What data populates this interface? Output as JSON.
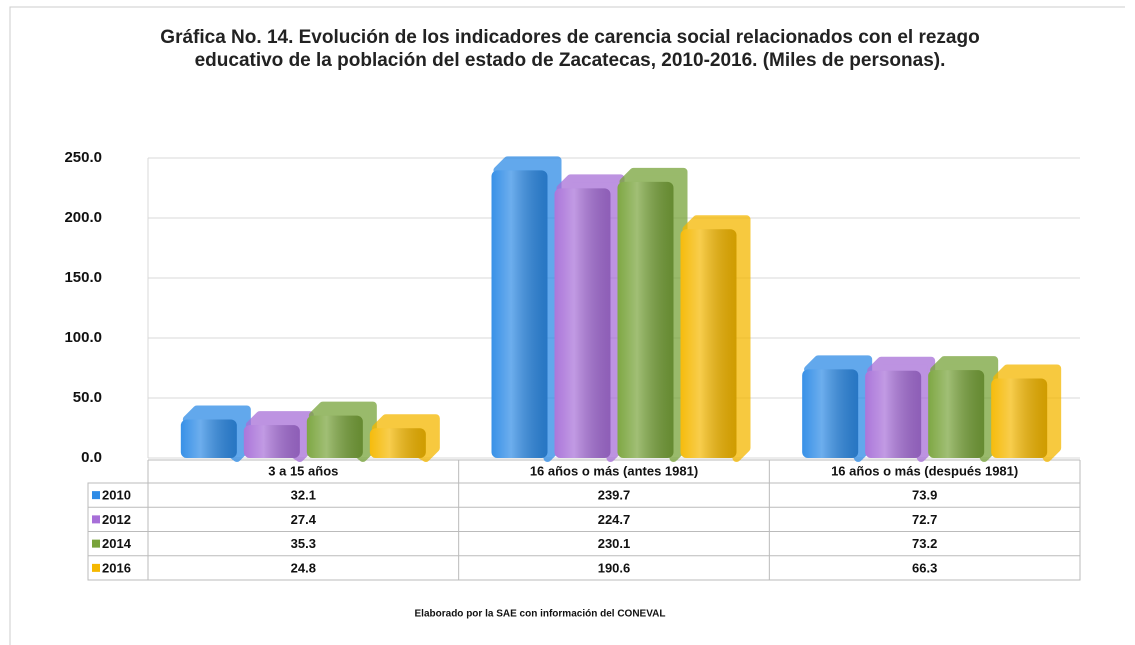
{
  "chart_data": {
    "type": "bar",
    "title": "Gráfica No. 14. Evolución de los indicadores de carencia social relacionados con el rezago educativo de la población del estado de Zacatecas, 2010-2016. (Miles de personas).",
    "categories": [
      "3 a 15 años",
      "16 años o más (antes 1981)",
      "16 años o más (después 1981)"
    ],
    "series": [
      {
        "name": "2010",
        "color": "#2e8be6",
        "values": [
          32.1,
          239.7,
          73.9
        ]
      },
      {
        "name": "2012",
        "color": "#a76fd8",
        "values": [
          27.4,
          224.7,
          72.7
        ]
      },
      {
        "name": "2014",
        "color": "#78a33a",
        "values": [
          35.3,
          230.1,
          73.2
        ]
      },
      {
        "name": "2016",
        "color": "#f5b800",
        "values": [
          24.8,
          190.6,
          66.3
        ]
      }
    ],
    "ylim": [
      0,
      250
    ],
    "yticks": [
      {
        "value": 0,
        "label": "0.0"
      },
      {
        "value": 50,
        "label": "50.0"
      },
      {
        "value": 100,
        "label": "100.0"
      },
      {
        "value": 150,
        "label": "150.0"
      },
      {
        "value": 200,
        "label": "200.0"
      },
      {
        "value": 250,
        "label": "250.0"
      }
    ],
    "grid": true,
    "note": "Elaborado por la SAE con información del CONEVAL"
  }
}
